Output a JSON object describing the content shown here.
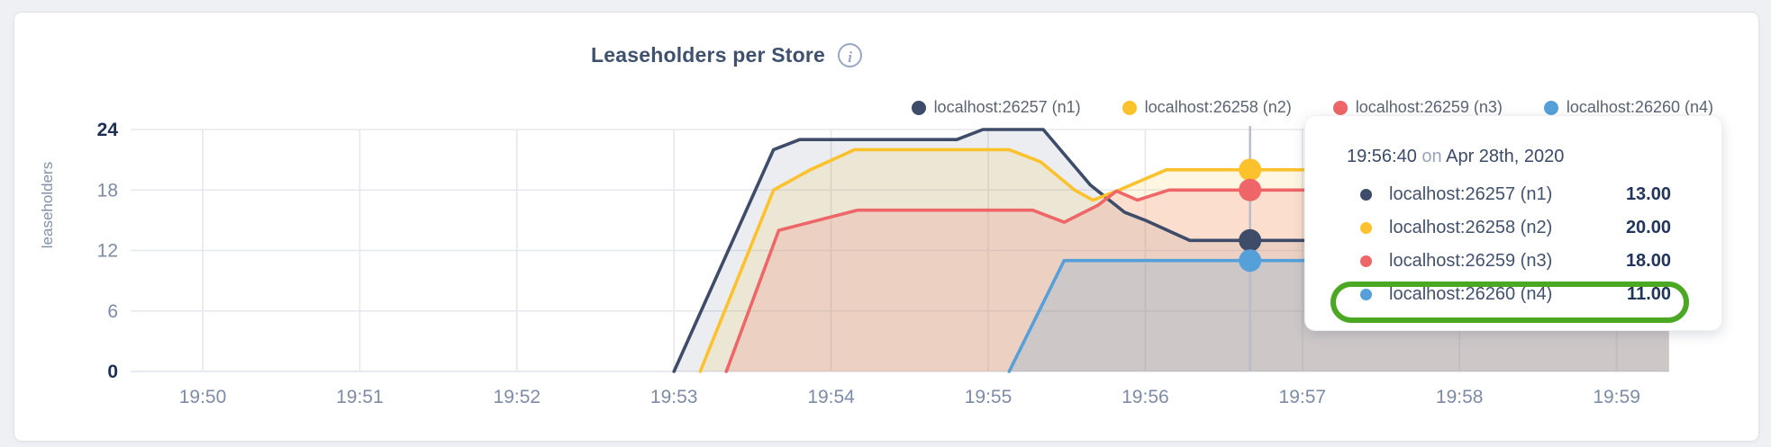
{
  "header": {
    "title": "Leaseholders per Store"
  },
  "tooltip": {
    "time": "19:56:40",
    "conjunction": "on",
    "date": "Apr 28th, 2020",
    "values": [
      "13.00",
      "20.00",
      "18.00",
      "11.00"
    ],
    "highlight_color": "#4BA823",
    "highlighted_row_index": 3
  },
  "chart_data": {
    "type": "area",
    "title": "Leaseholders per Store",
    "xlabel": "",
    "ylabel": "leaseholders",
    "ylim": [
      0,
      24
    ],
    "y_ticks": [
      0,
      6,
      12,
      18,
      24
    ],
    "y_bold_ticks": [
      0,
      24
    ],
    "grid": true,
    "legend_position": "top-right",
    "x_start_time": "19:50",
    "x_range_seconds": [
      0,
      560
    ],
    "x_ticks": [
      {
        "t": 0,
        "label": "19:50"
      },
      {
        "t": 60,
        "label": "19:51"
      },
      {
        "t": 120,
        "label": "19:52"
      },
      {
        "t": 180,
        "label": "19:53"
      },
      {
        "t": 240,
        "label": "19:54"
      },
      {
        "t": 300,
        "label": "19:55"
      },
      {
        "t": 360,
        "label": "19:56"
      },
      {
        "t": 420,
        "label": "19:57"
      },
      {
        "t": 480,
        "label": "19:58"
      },
      {
        "t": 540,
        "label": "19:59"
      }
    ],
    "series": [
      {
        "name": "localhost:26257 (n1)",
        "color": "#3E4C69",
        "fill_opacity": 0.1,
        "points": [
          [
            180,
            0
          ],
          [
            218,
            22
          ],
          [
            228,
            23
          ],
          [
            288,
            23
          ],
          [
            298,
            24
          ],
          [
            321,
            24
          ],
          [
            339,
            18.5
          ],
          [
            352,
            15.8
          ],
          [
            360,
            15
          ],
          [
            377,
            13
          ],
          [
            560,
            13
          ]
        ]
      },
      {
        "name": "localhost:26258 (n2)",
        "color": "#FBC22D",
        "fill_opacity": 0.14,
        "points": [
          [
            190,
            0
          ],
          [
            218,
            18
          ],
          [
            232,
            20
          ],
          [
            249,
            22
          ],
          [
            308,
            22
          ],
          [
            320,
            20.8
          ],
          [
            333,
            18
          ],
          [
            340,
            17
          ],
          [
            350,
            18
          ],
          [
            368,
            20
          ],
          [
            560,
            20
          ]
        ]
      },
      {
        "name": "localhost:26259 (n3)",
        "color": "#EE6667",
        "fill_opacity": 0.16,
        "points": [
          [
            200,
            0
          ],
          [
            220,
            14
          ],
          [
            250,
            16
          ],
          [
            317,
            16
          ],
          [
            329,
            14.8
          ],
          [
            342,
            16.5
          ],
          [
            349,
            17.9
          ],
          [
            357,
            17
          ],
          [
            369,
            18
          ],
          [
            560,
            18
          ]
        ]
      },
      {
        "name": "localhost:26260 (n4)",
        "color": "#56A0DA",
        "fill_opacity": 0.2,
        "points": [
          [
            308,
            0
          ],
          [
            329,
            11
          ],
          [
            560,
            11
          ]
        ]
      }
    ],
    "hover": {
      "t": 400,
      "time": "19:56:40",
      "dot_values": [
        13,
        20,
        18,
        11
      ]
    },
    "colors": {
      "grid": "#e5e8ee",
      "hover_line": "#b7bcc6",
      "tick_label": "#7d8ba6",
      "tick_label_bold": "#1c3054",
      "axis_title": "#8291a8"
    }
  }
}
